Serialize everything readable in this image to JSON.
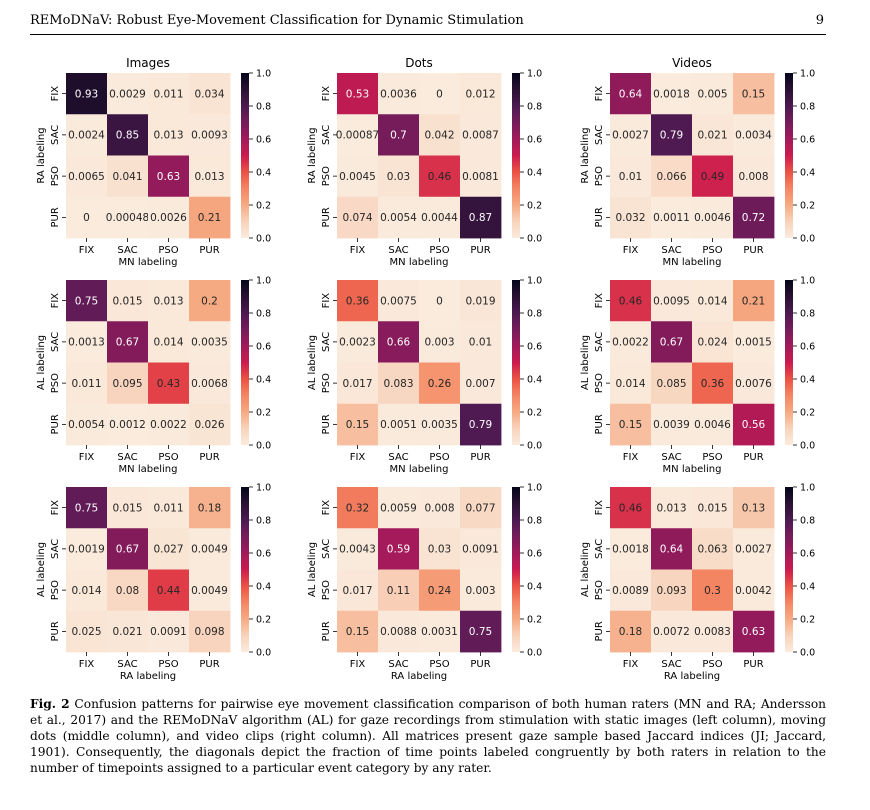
{
  "header": {
    "title": "REMoDNaV: Robust Eye-Movement Classification for Dynamic Stimulation",
    "page": "9"
  },
  "caption": {
    "label": "Fig. 2",
    "text": "Confusion patterns for pairwise eye movement classification comparison of both human raters (MN and RA; Andersson et al., 2017) and the REMoDNaV algorithm (AL) for gaze recordings from stimulation with static images (left column), moving dots (middle column), and video clips (right column). All matrices present gaze sample based Jaccard indices (JI; Jaccard, 1901). Consequently, the diagonals depict the fraction of time points labeled congruently by both raters in relation to the number of timepoints assigned to a particular event category by any rater."
  },
  "chart_data": [
    {
      "type": "heatmap",
      "title": "Images",
      "xlabel": "MN labeling",
      "ylabel": "RA labeling",
      "categories": [
        "FIX",
        "SAC",
        "PSO",
        "PUR"
      ],
      "values": [
        [
          "0.93",
          "0.0029",
          "0.011",
          "0.034"
        ],
        [
          "0.0024",
          "0.85",
          "0.013",
          "0.0093"
        ],
        [
          "0.0065",
          "0.041",
          "0.63",
          "0.013"
        ],
        [
          "0",
          "0.00048",
          "0.0026",
          "0.21"
        ]
      ],
      "colorbar": {
        "range": [
          0,
          1
        ],
        "ticks": [
          "0.0",
          "0.2",
          "0.4",
          "0.6",
          "0.8",
          "1.0"
        ]
      }
    },
    {
      "type": "heatmap",
      "title": "Dots",
      "xlabel": "MN labeling",
      "ylabel": "RA labeling",
      "categories": [
        "FIX",
        "SAC",
        "PSO",
        "PUR"
      ],
      "values": [
        [
          "0.53",
          "0.0036",
          "0",
          "0.012"
        ],
        [
          "0.00087",
          "0.7",
          "0.042",
          "0.0087"
        ],
        [
          "0.0045",
          "0.03",
          "0.46",
          "0.0081"
        ],
        [
          "0.074",
          "0.0054",
          "0.0044",
          "0.87"
        ]
      ],
      "colorbar": {
        "range": [
          0,
          1
        ],
        "ticks": [
          "0.0",
          "0.2",
          "0.4",
          "0.6",
          "0.8",
          "1.0"
        ]
      }
    },
    {
      "type": "heatmap",
      "title": "Videos",
      "xlabel": "MN labeling",
      "ylabel": "RA labeling",
      "categories": [
        "FIX",
        "SAC",
        "PSO",
        "PUR"
      ],
      "values": [
        [
          "0.64",
          "0.0018",
          "0.005",
          "0.15"
        ],
        [
          "0.0027",
          "0.79",
          "0.021",
          "0.0034"
        ],
        [
          "0.01",
          "0.066",
          "0.49",
          "0.008"
        ],
        [
          "0.032",
          "0.0011",
          "0.0046",
          "0.72"
        ]
      ],
      "colorbar": {
        "range": [
          0,
          1
        ],
        "ticks": [
          "0.0",
          "0.2",
          "0.4",
          "0.6",
          "0.8",
          "1.0"
        ]
      }
    },
    {
      "type": "heatmap",
      "title": "",
      "xlabel": "MN labeling",
      "ylabel": "AL labeling",
      "categories": [
        "FIX",
        "SAC",
        "PSO",
        "PUR"
      ],
      "values": [
        [
          "0.75",
          "0.015",
          "0.013",
          "0.2"
        ],
        [
          "0.0013",
          "0.67",
          "0.014",
          "0.0035"
        ],
        [
          "0.011",
          "0.095",
          "0.43",
          "0.0068"
        ],
        [
          "0.0054",
          "0.0012",
          "0.0022",
          "0.026"
        ]
      ],
      "colorbar": {
        "range": [
          0,
          1
        ],
        "ticks": [
          "0.0",
          "0.2",
          "0.4",
          "0.6",
          "0.8",
          "1.0"
        ]
      }
    },
    {
      "type": "heatmap",
      "title": "",
      "xlabel": "MN labeling",
      "ylabel": "AL labeling",
      "categories": [
        "FIX",
        "SAC",
        "PSO",
        "PUR"
      ],
      "values": [
        [
          "0.36",
          "0.0075",
          "0",
          "0.019"
        ],
        [
          "0.0023",
          "0.66",
          "0.003",
          "0.01"
        ],
        [
          "0.017",
          "0.083",
          "0.26",
          "0.007"
        ],
        [
          "0.15",
          "0.0051",
          "0.0035",
          "0.79"
        ]
      ],
      "colorbar": {
        "range": [
          0,
          1
        ],
        "ticks": [
          "0.0",
          "0.2",
          "0.4",
          "0.6",
          "0.8",
          "1.0"
        ]
      }
    },
    {
      "type": "heatmap",
      "title": "",
      "xlabel": "MN labeling",
      "ylabel": "AL labeling",
      "categories": [
        "FIX",
        "SAC",
        "PSO",
        "PUR"
      ],
      "values": [
        [
          "0.46",
          "0.0095",
          "0.014",
          "0.21"
        ],
        [
          "0.0022",
          "0.67",
          "0.024",
          "0.0015"
        ],
        [
          "0.014",
          "0.085",
          "0.36",
          "0.0076"
        ],
        [
          "0.15",
          "0.0039",
          "0.0046",
          "0.56"
        ]
      ],
      "colorbar": {
        "range": [
          0,
          1
        ],
        "ticks": [
          "0.0",
          "0.2",
          "0.4",
          "0.6",
          "0.8",
          "1.0"
        ]
      }
    },
    {
      "type": "heatmap",
      "title": "",
      "xlabel": "RA labeling",
      "ylabel": "AL labeling",
      "categories": [
        "FIX",
        "SAC",
        "PSO",
        "PUR"
      ],
      "values": [
        [
          "0.75",
          "0.015",
          "0.011",
          "0.18"
        ],
        [
          "0.0019",
          "0.67",
          "0.027",
          "0.0049"
        ],
        [
          "0.014",
          "0.08",
          "0.44",
          "0.0049"
        ],
        [
          "0.025",
          "0.021",
          "0.0091",
          "0.098"
        ]
      ],
      "colorbar": {
        "range": [
          0,
          1
        ],
        "ticks": [
          "0.0",
          "0.2",
          "0.4",
          "0.6",
          "0.8",
          "1.0"
        ]
      }
    },
    {
      "type": "heatmap",
      "title": "",
      "xlabel": "RA labeling",
      "ylabel": "AL labeling",
      "categories": [
        "FIX",
        "SAC",
        "PSO",
        "PUR"
      ],
      "values": [
        [
          "0.32",
          "0.0059",
          "0.008",
          "0.077"
        ],
        [
          "0.0043",
          "0.59",
          "0.03",
          "0.0091"
        ],
        [
          "0.017",
          "0.11",
          "0.24",
          "0.003"
        ],
        [
          "0.15",
          "0.0088",
          "0.0031",
          "0.75"
        ]
      ],
      "colorbar": {
        "range": [
          0,
          1
        ],
        "ticks": [
          "0.0",
          "0.2",
          "0.4",
          "0.6",
          "0.8",
          "1.0"
        ]
      }
    },
    {
      "type": "heatmap",
      "title": "",
      "xlabel": "RA labeling",
      "ylabel": "AL labeling",
      "categories": [
        "FIX",
        "SAC",
        "PSO",
        "PUR"
      ],
      "values": [
        [
          "0.46",
          "0.013",
          "0.015",
          "0.13"
        ],
        [
          "0.0018",
          "0.64",
          "0.063",
          "0.0027"
        ],
        [
          "0.0089",
          "0.093",
          "0.3",
          "0.0042"
        ],
        [
          "0.18",
          "0.0072",
          "0.0083",
          "0.63"
        ]
      ],
      "colorbar": {
        "range": [
          0,
          1
        ],
        "ticks": [
          "0.0",
          "0.2",
          "0.4",
          "0.6",
          "0.8",
          "1.0"
        ]
      }
    }
  ]
}
